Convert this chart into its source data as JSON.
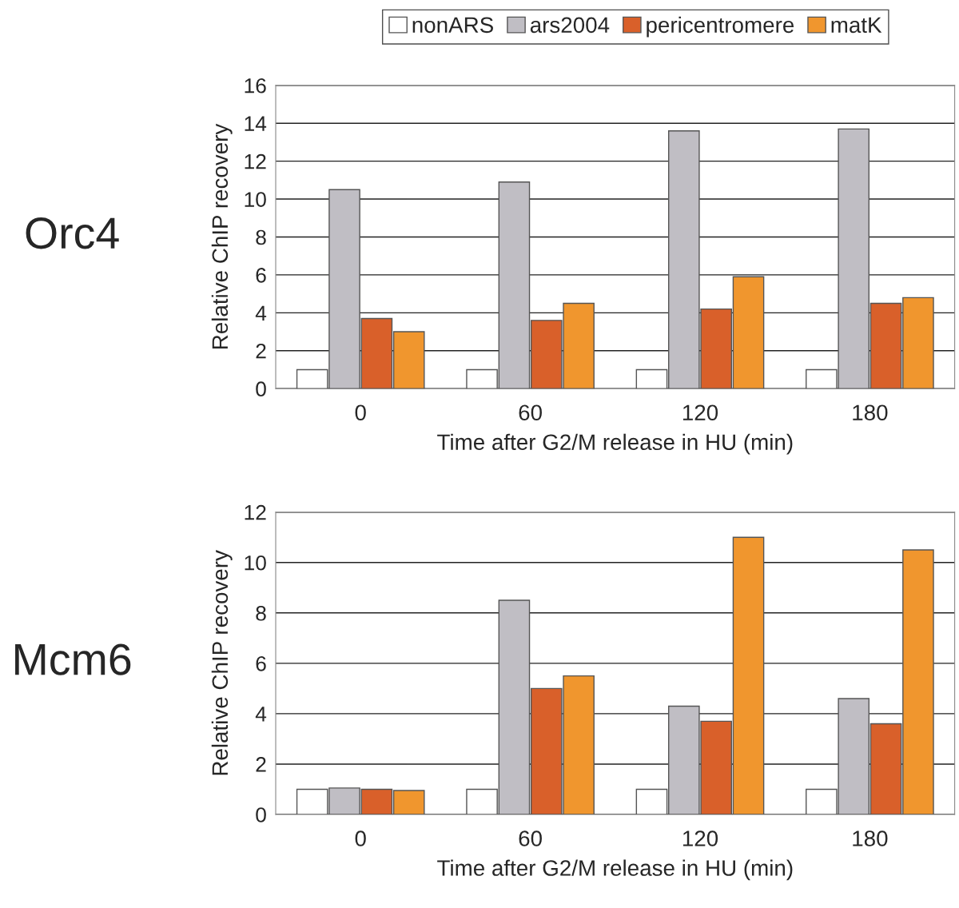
{
  "chart_data": [
    {
      "type": "bar",
      "title": "Orc4",
      "xlabel": "Time after G2/M release in HU (min)",
      "ylabel": "Relative ChIP recovery",
      "categories": [
        "0",
        "60",
        "120",
        "180"
      ],
      "ylim": [
        0,
        16
      ],
      "yticks": [
        0,
        2,
        4,
        6,
        8,
        10,
        12,
        14,
        16
      ],
      "grid": "y",
      "legend": "top",
      "series": [
        {
          "name": "nonARS",
          "color": "#ffffff",
          "values": [
            1,
            1,
            1,
            1
          ]
        },
        {
          "name": "ars2004",
          "color": "#c0bec4",
          "values": [
            10.5,
            10.9,
            13.6,
            13.7
          ]
        },
        {
          "name": "pericentromere",
          "color": "#d9602a",
          "values": [
            3.7,
            3.6,
            4.2,
            4.5
          ]
        },
        {
          "name": "matK",
          "color": "#f0962e",
          "values": [
            3.0,
            4.5,
            5.9,
            4.8
          ]
        }
      ]
    },
    {
      "type": "bar",
      "title": "Mcm6",
      "xlabel": "Time after G2/M release in HU (min)",
      "ylabel": "Relative ChIP recovery",
      "categories": [
        "0",
        "60",
        "120",
        "180"
      ],
      "ylim": [
        0,
        12
      ],
      "yticks": [
        0,
        2,
        4,
        6,
        8,
        10,
        12
      ],
      "grid": "y",
      "series": [
        {
          "color": "#ffffff",
          "values": [
            1.0,
            1.0,
            1.0,
            1.0
          ]
        },
        {
          "color": "#c0bec4",
          "values": [
            1.05,
            8.5,
            4.3,
            4.6
          ]
        },
        {
          "color": "#d9602a",
          "values": [
            1.0,
            5.0,
            3.7,
            3.6
          ]
        },
        {
          "color": "#f0962e",
          "values": [
            0.95,
            5.5,
            11.0,
            10.5
          ]
        }
      ]
    }
  ]
}
